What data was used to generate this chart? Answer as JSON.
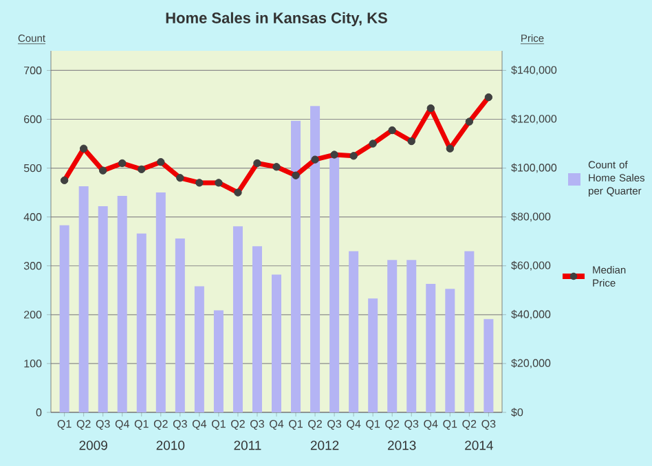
{
  "chart_data": {
    "type": "bar",
    "title": "Home Sales in Kansas City, KS",
    "ylabel": "Count",
    "y2label": "Price",
    "categories": [
      "Q1",
      "Q2",
      "Q3",
      "Q4",
      "Q1",
      "Q2",
      "Q3",
      "Q4",
      "Q1",
      "Q2",
      "Q3",
      "Q4",
      "Q1",
      "Q2",
      "Q3",
      "Q4",
      "Q1",
      "Q2",
      "Q3",
      "Q4",
      "Q1",
      "Q2",
      "Q3"
    ],
    "annotations": [
      "2009",
      "2010",
      "2011",
      "2012",
      "2013",
      "2014"
    ],
    "series": [
      {
        "name": "Count of Home Sales per Quarter",
        "color": "#b4b4f4",
        "values": [
          383,
          463,
          422,
          443,
          366,
          450,
          356,
          258,
          209,
          381,
          340,
          282,
          597,
          627,
          525,
          330,
          233,
          312,
          312,
          263,
          253,
          330,
          191
        ]
      },
      {
        "name": "Median Price",
        "type": "line",
        "axis": "y2",
        "color": "#ee0000",
        "marker": "circle",
        "values": [
          95000,
          108000,
          99000,
          102000,
          99500,
          102500,
          96000,
          94000,
          94000,
          90000,
          102000,
          100500,
          97000,
          103500,
          105500,
          105000,
          110000,
          115500,
          111000,
          124500,
          108000,
          119000,
          129000
        ]
      }
    ],
    "ylim": [
      0,
      740
    ],
    "yticks": [
      0,
      100,
      200,
      300,
      400,
      500,
      600,
      700
    ],
    "y2lim": [
      0,
      148000
    ],
    "y2ticks": [
      {
        "value": 0,
        "label": "$0"
      },
      {
        "value": 20000,
        "label": "$20,000"
      },
      {
        "value": 40000,
        "label": "$40,000"
      },
      {
        "value": 60000,
        "label": "$60,000"
      },
      {
        "value": 80000,
        "label": "$80,000"
      },
      {
        "value": 100000,
        "label": "$100,000"
      },
      {
        "value": 120000,
        "label": "$120,000"
      },
      {
        "value": 140000,
        "label": "$140,000"
      }
    ],
    "grid": "y",
    "legend": "right"
  }
}
